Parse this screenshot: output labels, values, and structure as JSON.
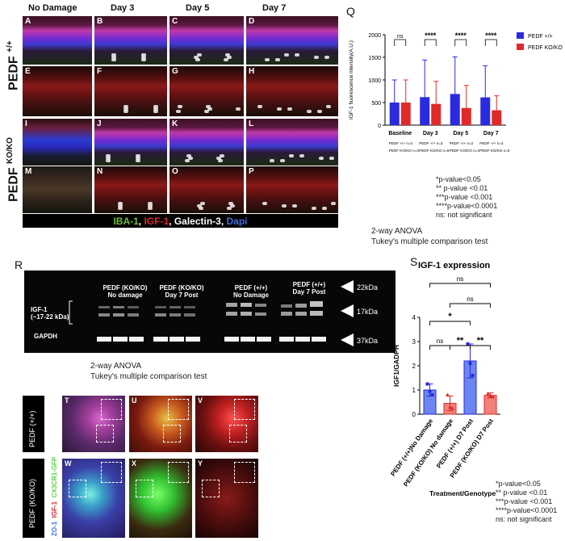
{
  "panel_grid": {
    "col_headers": [
      "No Damage",
      "Day 3",
      "Day 5",
      "Day 7"
    ],
    "row_labels": [
      "PEDF +/+",
      "PEDF KO/KO"
    ],
    "row_label_main": "PEDF",
    "row_label_sup": [
      "+/+",
      "KO/KO"
    ],
    "tiles": [
      "A",
      "B",
      "C",
      "D",
      "E",
      "F",
      "G",
      "H",
      "I",
      "J",
      "K",
      "L",
      "M",
      "N",
      "O",
      "P"
    ],
    "stain_legend": [
      {
        "text": "IBA-1",
        "color": "#6fbf3a"
      },
      {
        "text": ", ",
        "color": "#ffffff"
      },
      {
        "text": "IGF-1",
        "color": "#e0242a"
      },
      {
        "text": ", ",
        "color": "#ffffff"
      },
      {
        "text": "Galectin-3",
        "color": "#ffffff"
      },
      {
        "text": ", ",
        "color": "#ffffff"
      },
      {
        "text": "Dapi",
        "color": "#3b6fe0"
      }
    ]
  },
  "panel_letters": {
    "q": "Q",
    "r": "R",
    "s": "S"
  },
  "chart_data": [
    {
      "type": "bar",
      "panel": "Q",
      "ylabel": "IGF-1 fluorescence intensity(A.U.)",
      "xlabel": "",
      "ylim": [
        0,
        2000
      ],
      "yticks": [
        0,
        500,
        1000,
        1500,
        2000
      ],
      "categories": [
        "Baseline",
        "Day 3",
        "Day 5",
        "Day 7"
      ],
      "category_notes": [
        [
          "PEDF +/+ n=3",
          "PEDF KO/KO n=3"
        ],
        [
          "PEDF +/+ n=3",
          "PEDF KO/KO n=6"
        ],
        [
          "PEDF +/+ n=3",
          "PEDF KO/KO n=4"
        ],
        [
          "PEDF +/+ n=3",
          "PEDF KO/KO n=6"
        ]
      ],
      "series": [
        {
          "name": "PEDF +/+",
          "color": "#2a2ae0",
          "values": [
            500,
            620,
            690,
            615
          ],
          "error": [
            500,
            820,
            820,
            700
          ]
        },
        {
          "name": "PEDF KO/KO",
          "color": "#e02a2a",
          "values": [
            500,
            470,
            380,
            330
          ],
          "error": [
            500,
            500,
            500,
            320
          ]
        }
      ],
      "significance": [
        "ns",
        "****",
        "****",
        "****"
      ],
      "legend_position": "top-right",
      "grid": false
    },
    {
      "type": "bar",
      "panel": "S",
      "title": "IGF-1 expression",
      "ylabel": "IGF1/GADPH",
      "xlabel": "Treatment/Genotype",
      "ylim": [
        0,
        4
      ],
      "yticks": [
        0,
        1,
        2,
        3,
        4
      ],
      "categories": [
        "PEDF (+/+)No Damage",
        "PEDF (KO/KO) No damage",
        "PEDF (+/+) D7 Post",
        "PEDF (KO/KO) D7 Post"
      ],
      "values": [
        1.0,
        0.45,
        2.2,
        0.78
      ],
      "error": [
        0.25,
        0.3,
        0.7,
        0.1
      ],
      "colors": [
        "#6b86f0",
        "#f0807a",
        "#6b86f0",
        "#f0807a"
      ],
      "edge_colors": [
        "#2a2ae0",
        "#e02a2a",
        "#2a2ae0",
        "#e02a2a"
      ],
      "points": [
        [
          1.25,
          0.95,
          0.8
        ],
        [
          0.8,
          0.3,
          0.25
        ],
        [
          2.9,
          2.1,
          1.6
        ],
        [
          0.85,
          0.75,
          0.72
        ]
      ],
      "comparisons": [
        {
          "pair": [
            0,
            1
          ],
          "label": "ns",
          "level": 3.6
        },
        {
          "pair": [
            1,
            3
          ],
          "label": "ns",
          "level": 5.2
        },
        {
          "pair": [
            0,
            2
          ],
          "label": "*",
          "level": 4.4
        },
        {
          "pair": [
            1,
            2
          ],
          "label": "**",
          "level": 3.6
        },
        {
          "pair": [
            2,
            3
          ],
          "label": "**",
          "level": 3.6
        },
        {
          "pair": [
            0,
            3
          ],
          "label": "ns",
          "level": 6.0
        }
      ]
    }
  ],
  "q_significance_key": [
    "*p-value<0.05",
    "** p-value <0.01",
    "***p-value <0.001",
    "****p-value<0.0001",
    "ns: not significant"
  ],
  "q_anova": [
    "2-way ANOVA",
    "Tukey's multiple comparison test"
  ],
  "blot": {
    "lanes": [
      "PEDF (KO/KO)\nNo damage",
      "PEDF (KO/KO)\nDay 7 Post",
      "PEDF (+/+)\nNo Damage",
      "PEDF (+/+)\nDay 7 Post"
    ],
    "lane1a": "PEDF (KO/KO)",
    "lane1b": "No damage",
    "lane2a": "PEDF (KO/KO)",
    "lane2b": "Day 7 Post",
    "lane3a": "PEDF (+/+)",
    "lane3b": "No Damage",
    "lane4a": "PEDF (+/+)",
    "lane4b": "Day 7 Post",
    "igf_label": "IGF-1",
    "igf_range": "(~17-22 kDa)",
    "gapdh_label": "GAPDH",
    "markers": [
      "22kDa",
      "17kDa",
      "37kDa"
    ]
  },
  "r_anova": [
    "2-way ANOVA",
    "Tukey's multiple comparison test"
  ],
  "s_significance_key": [
    "*p-value<0.05",
    "** p-value <0.01",
    "***p-value <0.001",
    "****p-value<0.0001",
    "ns: not significant"
  ],
  "micro": {
    "tiles": [
      "T",
      "U",
      "V",
      "W",
      "X",
      "Y"
    ],
    "row_labels": [
      "PEDF (+/+)",
      "PEDF (KO/KO)"
    ],
    "stain_label": [
      {
        "text": "ZO-1",
        "color": "#3b6fe0"
      },
      {
        "text": ", ",
        "color": "#ffffff"
      },
      {
        "text": "IGF-1",
        "color": "#e0242a"
      },
      {
        "text": ", ",
        "color": "#ffffff"
      },
      {
        "text": "CX3CR1-GFP",
        "color": "#5fd04a"
      }
    ]
  }
}
